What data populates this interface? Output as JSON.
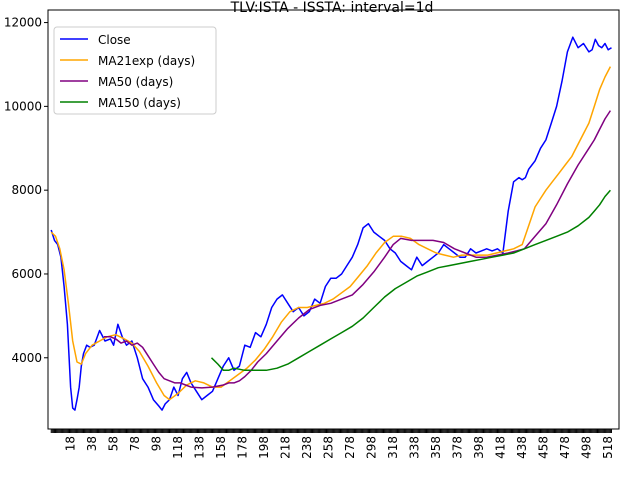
{
  "chart_data": {
    "type": "line",
    "title": "TLV:ISTA - ISSTA: interval=1d",
    "xlabel": "",
    "ylabel": "",
    "xlim": [
      -3,
      528
    ],
    "ylim": [
      2300,
      12300
    ],
    "grid": false,
    "legend_position": "top-left",
    "yticks": [
      4000,
      6000,
      8000,
      10000,
      12000
    ],
    "ytick_labels": [
      "4000",
      "6000",
      "8000",
      "10000",
      "12000"
    ],
    "xticks": [
      18,
      38,
      58,
      78,
      98,
      118,
      138,
      158,
      178,
      198,
      218,
      238,
      258,
      278,
      298,
      318,
      338,
      358,
      378,
      398,
      418,
      438,
      458,
      478,
      498,
      518
    ],
    "xtick_labels": [
      "18",
      "38",
      "58",
      "78",
      "98",
      "118",
      "138",
      "158",
      "178",
      "198",
      "218",
      "238",
      "258",
      "278",
      "298",
      "318",
      "338",
      "358",
      "378",
      "398",
      "418",
      "438",
      "458",
      "478",
      "498",
      "518"
    ],
    "series": [
      {
        "name": "Close",
        "color": "#0000ff",
        "x": [
          0,
          3,
          6,
          9,
          12,
          15,
          18,
          20,
          22,
          24,
          26,
          28,
          30,
          33,
          36,
          40,
          45,
          50,
          55,
          58,
          62,
          66,
          70,
          75,
          80,
          85,
          90,
          95,
          100,
          103,
          106,
          110,
          114,
          118,
          122,
          126,
          130,
          135,
          140,
          145,
          150,
          155,
          160,
          165,
          170,
          175,
          180,
          185,
          190,
          195,
          200,
          205,
          210,
          215,
          220,
          225,
          230,
          235,
          240,
          245,
          250,
          255,
          260,
          265,
          270,
          275,
          280,
          285,
          290,
          295,
          300,
          305,
          310,
          315,
          320,
          325,
          330,
          335,
          340,
          345,
          350,
          355,
          360,
          365,
          370,
          375,
          380,
          385,
          390,
          395,
          400,
          405,
          410,
          415,
          420,
          425,
          430,
          435,
          438,
          441,
          444,
          447,
          450,
          455,
          460,
          465,
          470,
          475,
          480,
          485,
          490,
          495,
          500,
          503,
          506,
          509,
          512,
          515,
          518,
          521
        ],
        "y": [
          7050,
          6800,
          6700,
          6400,
          5700,
          4800,
          3300,
          2800,
          2750,
          3000,
          3300,
          3800,
          4100,
          4300,
          4250,
          4300,
          4650,
          4400,
          4450,
          4300,
          4800,
          4500,
          4300,
          4400,
          4000,
          3500,
          3300,
          3000,
          2850,
          2750,
          2900,
          3000,
          3300,
          3100,
          3500,
          3650,
          3400,
          3200,
          3000,
          3100,
          3200,
          3500,
          3800,
          4000,
          3700,
          3800,
          4300,
          4250,
          4600,
          4500,
          4800,
          5200,
          5400,
          5500,
          5300,
          5100,
          5200,
          5000,
          5100,
          5400,
          5300,
          5700,
          5900,
          5900,
          6000,
          6200,
          6400,
          6700,
          7100,
          7200,
          7000,
          6900,
          6800,
          6600,
          6500,
          6300,
          6200,
          6100,
          6400,
          6200,
          6300,
          6400,
          6500,
          6700,
          6600,
          6500,
          6400,
          6400,
          6600,
          6500,
          6550,
          6600,
          6550,
          6600,
          6500,
          7500,
          8200,
          8300,
          8250,
          8300,
          8500,
          8600,
          8700,
          9000,
          9200,
          9600,
          10000,
          10600,
          11300,
          11650,
          11400,
          11500,
          11300,
          11350,
          11600,
          11450,
          11400,
          11500,
          11350,
          11400
        ]
      },
      {
        "name": "MA21exp (days)",
        "color": "#ffa500",
        "x": [
          0,
          4,
          8,
          12,
          16,
          20,
          24,
          28,
          32,
          38,
          45,
          52,
          60,
          68,
          75,
          82,
          90,
          98,
          105,
          110,
          118,
          126,
          134,
          142,
          150,
          158,
          166,
          174,
          182,
          190,
          198,
          206,
          214,
          222,
          230,
          238,
          246,
          254,
          262,
          270,
          278,
          286,
          294,
          302,
          310,
          318,
          326,
          334,
          342,
          350,
          358,
          366,
          374,
          382,
          390,
          398,
          406,
          414,
          422,
          430,
          438,
          442,
          446,
          450,
          455,
          460,
          466,
          472,
          478,
          484,
          490,
          496,
          500,
          505,
          510,
          515,
          520
        ],
        "y": [
          7000,
          6900,
          6600,
          6100,
          5300,
          4400,
          3900,
          3850,
          4100,
          4300,
          4400,
          4500,
          4550,
          4450,
          4350,
          4150,
          3800,
          3400,
          3100,
          3000,
          3150,
          3350,
          3450,
          3400,
          3300,
          3300,
          3450,
          3600,
          3750,
          3950,
          4200,
          4500,
          4850,
          5100,
          5200,
          5200,
          5250,
          5300,
          5400,
          5550,
          5700,
          5950,
          6200,
          6500,
          6750,
          6900,
          6900,
          6850,
          6700,
          6600,
          6500,
          6450,
          6400,
          6450,
          6450,
          6450,
          6450,
          6500,
          6550,
          6600,
          6700,
          7000,
          7300,
          7600,
          7800,
          8000,
          8200,
          8400,
          8600,
          8800,
          9100,
          9400,
          9600,
          10000,
          10400,
          10700,
          10950
        ]
      },
      {
        "name": "MA50 (days)",
        "color": "#800080",
        "x": [
          49,
          55,
          60,
          65,
          70,
          75,
          80,
          85,
          90,
          95,
          100,
          105,
          110,
          115,
          120,
          125,
          130,
          140,
          150,
          160,
          165,
          170,
          175,
          180,
          186,
          192,
          200,
          210,
          220,
          230,
          240,
          250,
          260,
          270,
          280,
          290,
          300,
          310,
          318,
          325,
          335,
          345,
          355,
          365,
          375,
          385,
          395,
          405,
          415,
          425,
          433,
          440,
          450,
          460,
          470,
          480,
          490,
          500,
          505,
          510,
          515,
          520
        ],
        "y": [
          4500,
          4500,
          4450,
          4350,
          4400,
          4300,
          4350,
          4250,
          4050,
          3850,
          3650,
          3500,
          3450,
          3400,
          3400,
          3350,
          3300,
          3280,
          3300,
          3350,
          3400,
          3400,
          3450,
          3550,
          3700,
          3900,
          4100,
          4400,
          4700,
          4950,
          5150,
          5250,
          5300,
          5400,
          5500,
          5750,
          6050,
          6400,
          6700,
          6850,
          6800,
          6800,
          6800,
          6750,
          6600,
          6500,
          6400,
          6400,
          6450,
          6500,
          6550,
          6600,
          6900,
          7200,
          7650,
          8150,
          8600,
          9000,
          9200,
          9450,
          9700,
          9900
        ]
      },
      {
        "name": "MA150 (days)",
        "color": "#008000",
        "x": [
          149,
          155,
          160,
          165,
          170,
          180,
          190,
          200,
          210,
          220,
          230,
          240,
          250,
          260,
          270,
          280,
          290,
          300,
          310,
          320,
          330,
          340,
          350,
          360,
          370,
          380,
          390,
          400,
          410,
          420,
          430,
          440,
          450,
          460,
          470,
          480,
          490,
          500,
          505,
          510,
          515,
          520
        ],
        "y": [
          4000,
          3850,
          3700,
          3700,
          3750,
          3700,
          3700,
          3700,
          3750,
          3850,
          4000,
          4150,
          4300,
          4450,
          4600,
          4750,
          4950,
          5200,
          5450,
          5650,
          5800,
          5950,
          6050,
          6150,
          6200,
          6250,
          6300,
          6350,
          6400,
          6450,
          6500,
          6600,
          6700,
          6800,
          6900,
          7000,
          7150,
          7350,
          7500,
          7650,
          7850,
          8000
        ]
      }
    ]
  }
}
